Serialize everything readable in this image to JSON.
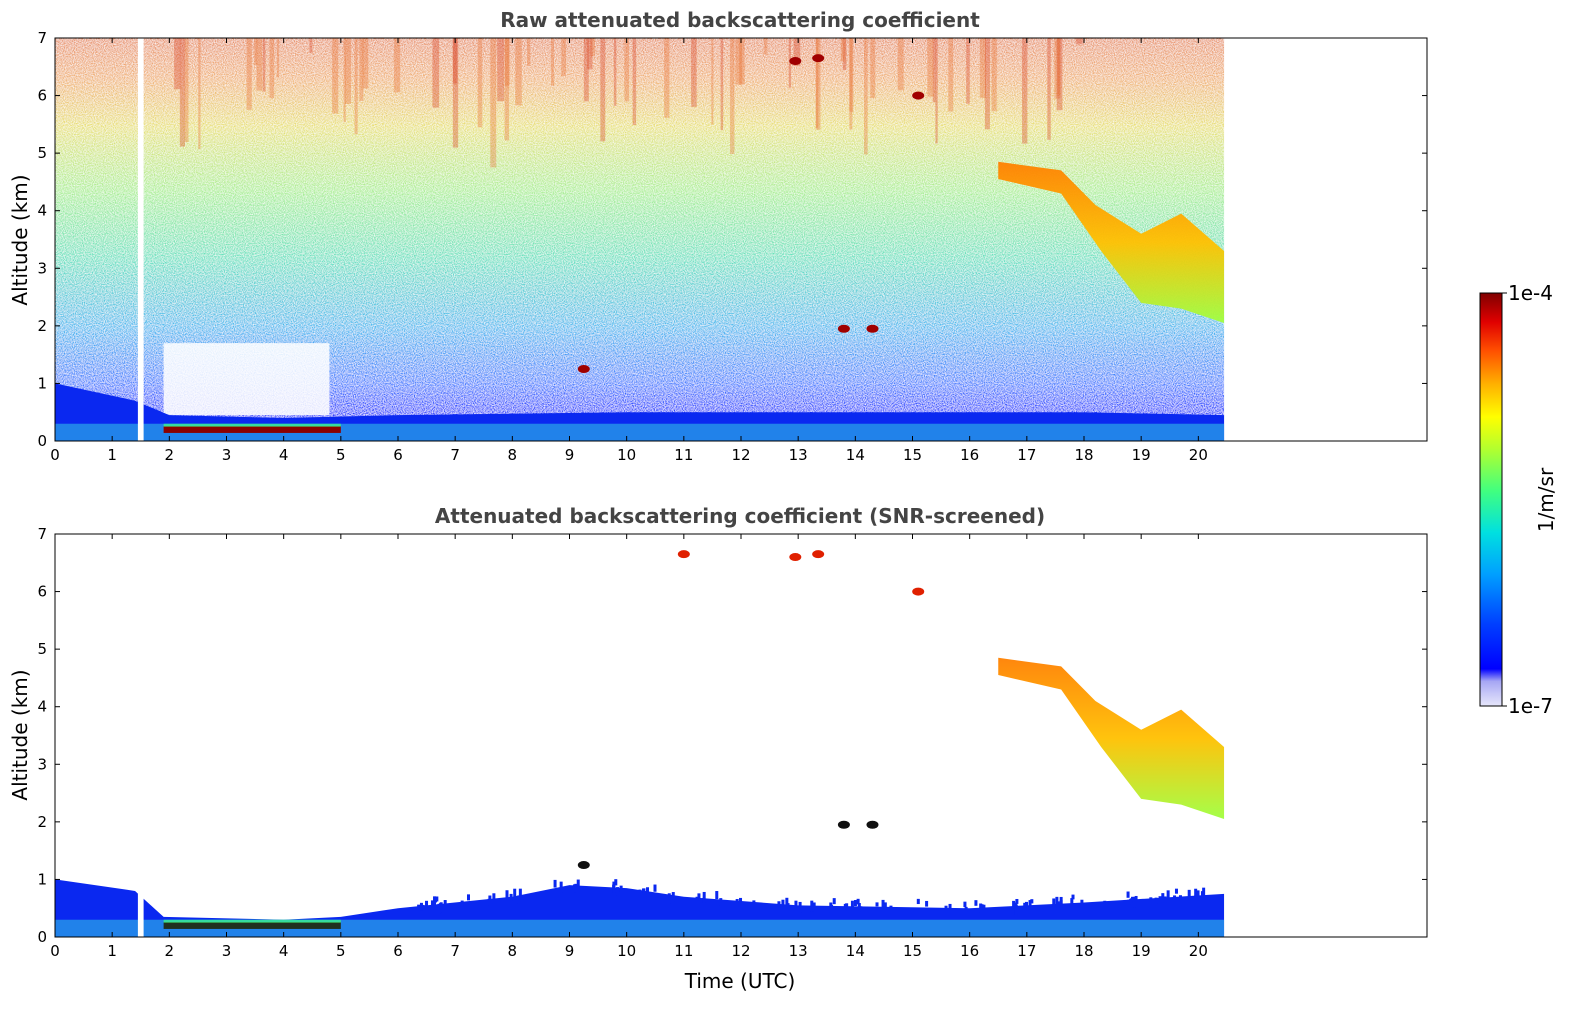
{
  "chart_data": [
    {
      "type": "heatmap",
      "title": "Raw attenuated backscattering coefficient",
      "xlabel": "",
      "ylabel": "Altitude (km)",
      "xlim": [
        0,
        24
      ],
      "ylim": [
        0,
        7
      ],
      "xticks": [
        0,
        1,
        2,
        3,
        4,
        5,
        6,
        7,
        8,
        9,
        10,
        11,
        12,
        13,
        14,
        15,
        16,
        17,
        18,
        19,
        20
      ],
      "yticks": [
        0,
        1,
        2,
        3,
        4,
        5,
        6,
        7
      ],
      "data_extent_hours": [
        0,
        20.45
      ],
      "gaps": [
        {
          "x_from": 1.45,
          "x_to": 1.55
        }
      ],
      "features": {
        "boundary_layer_top_km": [
          [
            0,
            1.0
          ],
          [
            1.4,
            0.7
          ],
          [
            2,
            0.45
          ],
          [
            4,
            0.4
          ],
          [
            6,
            0.45
          ],
          [
            10,
            0.5
          ],
          [
            14,
            0.5
          ],
          [
            18,
            0.5
          ],
          [
            20.45,
            0.45
          ]
        ],
        "low_cloud_layer": {
          "x_from": 1.9,
          "x_to": 5.0,
          "altitude_km": 0.2,
          "level": "1e-4"
        },
        "descending_cloud": [
          [
            16.5,
            4.7
          ],
          [
            17.5,
            4.5
          ],
          [
            18.3,
            3.7
          ],
          [
            19.0,
            2.8
          ],
          [
            19.6,
            2.3
          ],
          [
            20.45,
            2.1
          ]
        ],
        "cloud_patches": [
          {
            "x": 12.95,
            "y": 6.6
          },
          {
            "x": 13.35,
            "y": 6.65
          },
          {
            "x": 15.1,
            "y": 6.0
          },
          {
            "x": 13.8,
            "y": 1.95
          },
          {
            "x": 14.3,
            "y": 1.95
          },
          {
            "x": 9.25,
            "y": 1.25
          }
        ]
      }
    },
    {
      "type": "heatmap",
      "title": "Attenuated backscattering coefficient (SNR-screened)",
      "xlabel": "Time (UTC)",
      "ylabel": "Altitude (km)",
      "xlim": [
        0,
        24
      ],
      "ylim": [
        0,
        7
      ],
      "xticks": [
        0,
        1,
        2,
        3,
        4,
        5,
        6,
        7,
        8,
        9,
        10,
        11,
        12,
        13,
        14,
        15,
        16,
        17,
        18,
        19,
        20
      ],
      "yticks": [
        0,
        1,
        2,
        3,
        4,
        5,
        6,
        7
      ],
      "data_extent_hours": [
        0,
        20.45
      ],
      "gaps": [
        {
          "x_from": 1.45,
          "x_to": 1.55
        }
      ],
      "features": {
        "boundary_layer_top_km": [
          [
            0,
            1.0
          ],
          [
            1.4,
            0.8
          ],
          [
            1.9,
            0.35
          ],
          [
            4,
            0.3
          ],
          [
            5,
            0.35
          ],
          [
            6,
            0.5
          ],
          [
            8,
            0.7
          ],
          [
            9,
            0.9
          ],
          [
            10,
            0.85
          ],
          [
            11,
            0.7
          ],
          [
            13,
            0.55
          ],
          [
            16,
            0.5
          ],
          [
            18,
            0.6
          ],
          [
            20.45,
            0.75
          ]
        ],
        "low_cloud_layer": {
          "x_from": 1.9,
          "x_to": 5.0,
          "altitude_km": 0.2,
          "level": "1e-4"
        },
        "descending_cloud": [
          [
            16.5,
            4.8
          ],
          [
            17.5,
            4.6
          ],
          [
            18.3,
            3.8
          ],
          [
            19.0,
            3.0
          ],
          [
            19.6,
            2.4
          ],
          [
            20.45,
            2.1
          ]
        ],
        "cloud_patches": [
          {
            "x": 12.95,
            "y": 6.6
          },
          {
            "x": 13.35,
            "y": 6.65
          },
          {
            "x": 15.1,
            "y": 6.0
          },
          {
            "x": 11.0,
            "y": 6.65
          },
          {
            "x": 13.8,
            "y": 1.95
          },
          {
            "x": 14.3,
            "y": 1.95
          },
          {
            "x": 9.25,
            "y": 1.25
          }
        ]
      }
    }
  ],
  "colorbar": {
    "label": "1/m/sr",
    "min_label": "1e-7",
    "max_label": "1e-4",
    "scale": "log",
    "colormap": "jet",
    "colors": [
      "#e6e6fa",
      "#c8c8f8",
      "#a6a6f4",
      "#0000ff",
      "#0050ff",
      "#00a0ff",
      "#00e0e0",
      "#40ff80",
      "#b0ff30",
      "#ffff00",
      "#ffc000",
      "#ff7000",
      "#ff2000",
      "#c00000",
      "#800000"
    ]
  }
}
